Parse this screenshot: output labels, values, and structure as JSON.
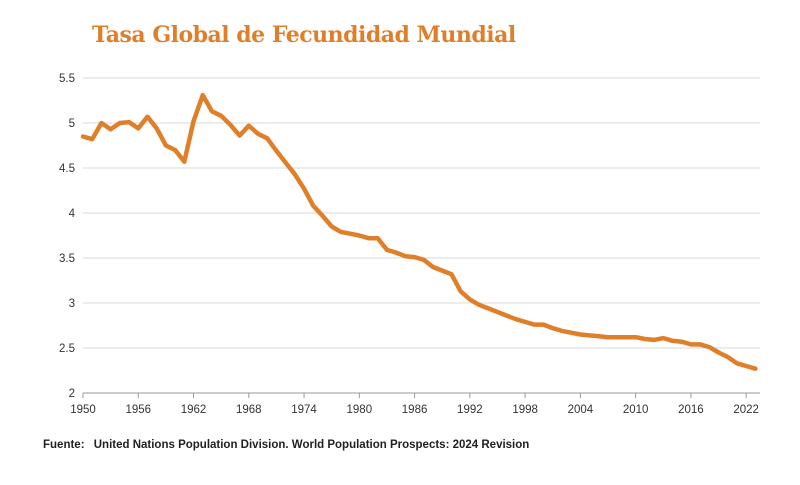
{
  "title": "Tasa Global de Fecundidad Mundial",
  "source": {
    "label": "Fuente:",
    "text": "United Nations Population Division. World Population Prospects: 2024 Revision"
  },
  "colors": {
    "line": "#E07F2A",
    "title": "#E07F2A",
    "grid": "#DADADA",
    "axis": "#999999"
  },
  "chart_data": {
    "type": "line",
    "title": "Tasa Global de Fecundidad Mundial",
    "xlabel": "",
    "ylabel": "",
    "xlim": [
      1950,
      2023.5
    ],
    "ylim": [
      2,
      5.5
    ],
    "grid": "horizontal",
    "x_ticks": [
      1950,
      1956,
      1962,
      1968,
      1974,
      1980,
      1986,
      1992,
      1998,
      2004,
      2010,
      2016,
      2022
    ],
    "y_ticks": [
      2,
      2.5,
      3,
      3.5,
      4,
      4.5,
      5,
      5.5
    ],
    "y_tick_labels": [
      "2",
      "2.5",
      "3",
      "3.5",
      "4",
      "4.5",
      "5",
      "5.5"
    ],
    "series": [
      {
        "x": [
          1950,
          1951,
          1952,
          1953,
          1954,
          1955,
          1956,
          1957,
          1958,
          1959,
          1960,
          1961,
          1962,
          1963,
          1964,
          1965,
          1966,
          1967,
          1968,
          1969,
          1970,
          1971,
          1972,
          1973,
          1974,
          1975,
          1976,
          1977,
          1978,
          1979,
          1980,
          1981,
          1982,
          1983,
          1984,
          1985,
          1986,
          1987,
          1988,
          1989,
          1990,
          1991,
          1992,
          1993,
          1994,
          1995,
          1996,
          1997,
          1998,
          1999,
          2000,
          2001,
          2002,
          2003,
          2004,
          2005,
          2006,
          2007,
          2008,
          2009,
          2010,
          2011,
          2012,
          2013,
          2014,
          2015,
          2016,
          2017,
          2018,
          2019,
          2020,
          2021,
          2022,
          2023
        ],
        "values": [
          4.85,
          4.82,
          5.0,
          4.93,
          5.0,
          5.01,
          4.94,
          5.07,
          4.94,
          4.75,
          4.7,
          4.57,
          5.02,
          5.31,
          5.13,
          5.08,
          4.98,
          4.86,
          4.97,
          4.88,
          4.83,
          4.69,
          4.56,
          4.43,
          4.27,
          4.08,
          3.97,
          3.85,
          3.79,
          3.77,
          3.75,
          3.72,
          3.72,
          3.59,
          3.56,
          3.52,
          3.51,
          3.48,
          3.4,
          3.36,
          3.32,
          3.13,
          3.04,
          2.98,
          2.94,
          2.9,
          2.86,
          2.82,
          2.79,
          2.76,
          2.76,
          2.72,
          2.69,
          2.67,
          2.65,
          2.64,
          2.63,
          2.62,
          2.62,
          2.62,
          2.62,
          2.6,
          2.59,
          2.61,
          2.58,
          2.57,
          2.54,
          2.54,
          2.51,
          2.45,
          2.4,
          2.33,
          2.3,
          2.27
        ]
      }
    ]
  }
}
